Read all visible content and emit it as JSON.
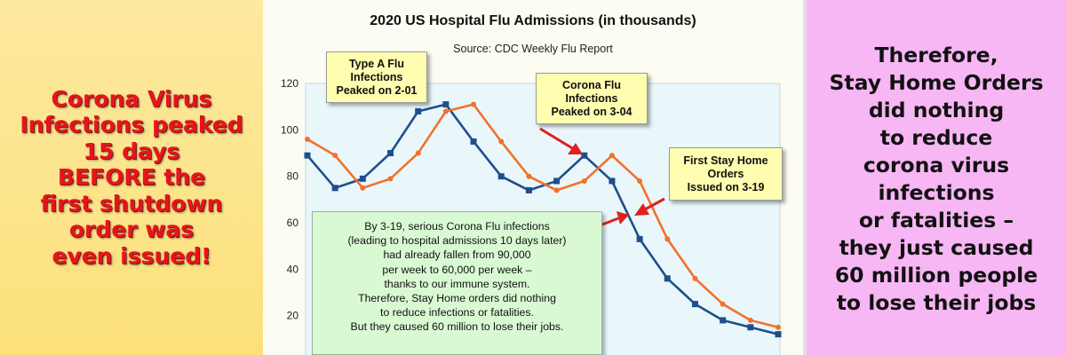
{
  "left_panel": {
    "lines": [
      "Corona Virus",
      "Infections peaked",
      "15 days",
      "BEFORE the",
      "first shutdown",
      "order was",
      "even issued!"
    ]
  },
  "right_panel": {
    "lines": [
      "Therefore,",
      "Stay Home Orders",
      "did nothing",
      "to reduce",
      "corona virus",
      "infections",
      "or fatalities –",
      "they just caused",
      "60 million people",
      "to lose their jobs"
    ]
  },
  "callouts": {
    "type_a": [
      "Type A Flu",
      "Infections",
      "Peaked on 2-01"
    ],
    "corona": [
      "Corona Flu",
      "Infections",
      "Peaked on 3-04"
    ],
    "stay_home": [
      "First Stay Home",
      "Orders",
      "Issued on 3-19"
    ],
    "summary": [
      "By 3-19, serious Corona Flu infections",
      "(leading to hospital admissions 10 days later)",
      "had already fallen from 90,000",
      "per week to 60,000 per week –",
      "thanks to our immune system.",
      "Therefore, Stay Home orders did nothing",
      "to reduce infections or fatalities.",
      "But they caused 60 million to lose their jobs."
    ]
  },
  "colors": {
    "series_blue": "#1f4e8c",
    "series_orange": "#f4702a",
    "arrow_red": "#e02020",
    "left_text": "#e8141a"
  },
  "chart_data": {
    "type": "line",
    "title": "2020 US Hospital Flu Admissions (in thousands)",
    "subtitle": "Source: CDC Weekly Flu Report",
    "xlabel": "",
    "ylabel": "",
    "ylim": [
      0,
      120
    ],
    "y_ticks": [
      20,
      40,
      60,
      80,
      100,
      120
    ],
    "grid": false,
    "series": [
      {
        "color": "#1f4e8c",
        "values": [
          89,
          75,
          79,
          90,
          108,
          111,
          95,
          80,
          74,
          78,
          89,
          78,
          53,
          36,
          25,
          18,
          15,
          12
        ]
      },
      {
        "color": "#f4702a",
        "values": [
          96,
          89,
          75,
          79,
          90,
          108,
          111,
          95,
          80,
          74,
          78,
          89,
          78,
          53,
          36,
          25,
          18,
          15
        ]
      }
    ]
  }
}
